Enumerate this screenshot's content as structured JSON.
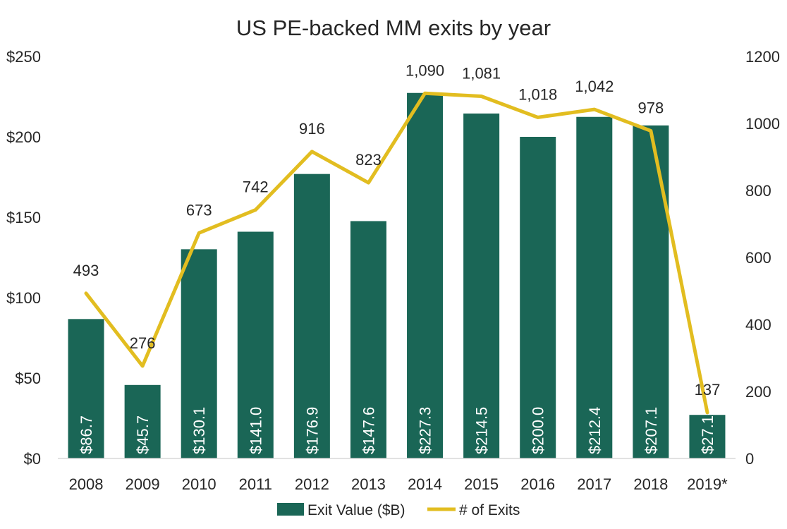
{
  "chart_data": {
    "type": "bar",
    "title": "US PE-backed MM exits by year",
    "categories": [
      "2008",
      "2009",
      "2010",
      "2011",
      "2012",
      "2013",
      "2014",
      "2015",
      "2016",
      "2017",
      "2018",
      "2019*"
    ],
    "series": [
      {
        "name": "Exit Value ($B)",
        "type": "bar",
        "axis": "left",
        "color": "#1a6656",
        "values": [
          86.7,
          45.7,
          130.1,
          141.0,
          176.9,
          147.6,
          227.3,
          214.5,
          200.0,
          212.4,
          207.1,
          27.1
        ],
        "labels": [
          "$86.7",
          "$45.7",
          "$130.1",
          "$141.0",
          "$176.9",
          "$147.6",
          "$227.3",
          "$214.5",
          "$200.0",
          "$212.4",
          "$207.1",
          "$27.1"
        ]
      },
      {
        "name": "# of Exits",
        "type": "line",
        "axis": "right",
        "color": "#e2bd20",
        "values": [
          493,
          276,
          673,
          742,
          916,
          823,
          1090,
          1081,
          1018,
          1042,
          978,
          137
        ],
        "labels": [
          "493",
          "276",
          "673",
          "742",
          "916",
          "823",
          "1,090",
          "1,081",
          "1,018",
          "1,042",
          "978",
          "137"
        ]
      }
    ],
    "left_axis": {
      "range": [
        0,
        250
      ],
      "ticks": [
        0,
        50,
        100,
        150,
        200,
        250
      ],
      "tick_labels": [
        "$0",
        "$50",
        "$100",
        "$150",
        "$200",
        "$250"
      ]
    },
    "right_axis": {
      "range": [
        0,
        1200
      ],
      "ticks": [
        0,
        200,
        400,
        600,
        800,
        1000,
        1200
      ],
      "tick_labels": [
        "0",
        "200",
        "400",
        "600",
        "800",
        "1000",
        "1200"
      ]
    },
    "grid": false,
    "legend_position": "bottom"
  }
}
